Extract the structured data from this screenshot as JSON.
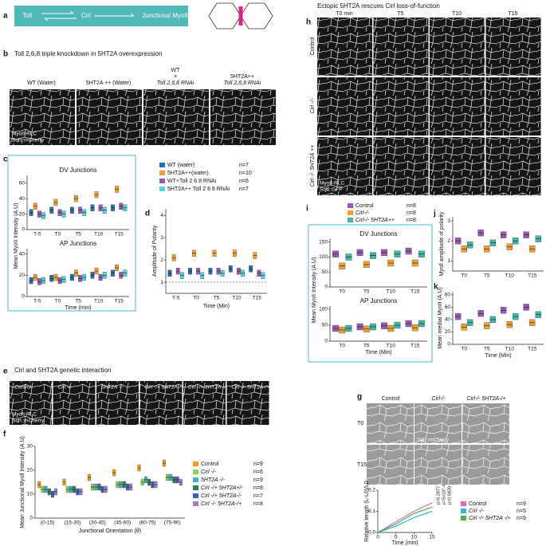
{
  "panel_a": {
    "letter": "a",
    "nodes": [
      "Toll",
      "Cirl",
      "Junctional MyoII"
    ]
  },
  "panel_b": {
    "letter": "b",
    "title": "Toll 2,6,8 triple knockdown in 5HT2A overexpression",
    "columns": [
      [
        "WT (Water)"
      ],
      [
        "5HT2A ++  (Water)"
      ],
      [
        "WT",
        "+",
        "Toll 2,6,8 RNAi"
      ],
      [
        "5HT2A++",
        "Toll 2,6,8 RNAi"
      ]
    ],
    "image_label": [
      "MyoII-RLC",
      "Sqh::mCherry"
    ]
  },
  "panel_c": {
    "letter": "c",
    "ylabel": "Mean MyoII Intensity (A.U)"
  },
  "panel_d": {
    "letter": "d"
  },
  "panel_e": {
    "letter": "e",
    "title": "Cirl and 5HT2A genetic interaction",
    "columns": [
      "Control",
      "Cirl -/-",
      "5HT2A -/-",
      "Cirl -/+ 5HT2A-/+",
      "Cirl -/+ 5HT2A -/-",
      "Cirl -/- 5HT2A-/+"
    ],
    "image_label": [
      "MyoII-RLC",
      "Sqh::mCherry"
    ]
  },
  "panel_f": {
    "letter": "f"
  },
  "panel_g": {
    "letter": "g",
    "columns": [
      "Control",
      "Cirl-/-",
      "Cirl-/- 5HT2A-/+"
    ],
    "rows": [
      "T0",
      "T15"
    ],
    "image_label": "Sqh::mCherry"
  },
  "panel_h": {
    "letter": "h",
    "title": "Ectopic 5HT2A  rescues Cirl loss-of-function",
    "columns": [
      "T0 min",
      "T5",
      "T10",
      "T15"
    ],
    "rows": [
      "Control",
      "Cirl -/-",
      "Cirl -/- 5HT2A ++"
    ],
    "image_label": [
      "MyoII-RLC",
      "Sqh::GFP"
    ]
  },
  "panel_i": {
    "letter": "i",
    "ylabel": "Mean MyoII Intensity (A.U)"
  },
  "panel_j": {
    "letter": "j"
  },
  "panel_k": {
    "letter": "k"
  },
  "chart_data": [
    {
      "type": "box",
      "title": "DV Junctions",
      "categories": [
        "T-5",
        "T0",
        "T5",
        "T10",
        "T15"
      ],
      "series": [
        {
          "color": "#2b6cb0",
          "values": [
            22,
            25,
            25,
            28,
            28
          ]
        },
        {
          "color": "#f0a030",
          "values": [
            30,
            35,
            40,
            45,
            52
          ]
        },
        {
          "color": "#9b59b6",
          "values": [
            20,
            22,
            25,
            28,
            30
          ]
        },
        {
          "color": "#4fd6d6",
          "values": [
            18,
            20,
            22,
            25,
            28
          ]
        }
      ],
      "ylim": [
        0,
        70
      ],
      "yticks": [
        0,
        20,
        40,
        60
      ]
    },
    {
      "type": "box",
      "title": "AP Junctions",
      "xlabel": "Time (min)",
      "categories": [
        "T-5",
        "T0",
        "T5",
        "T10",
        "T15"
      ],
      "series": [
        {
          "color": "#2b6cb0",
          "values": [
            15,
            17,
            18,
            20,
            22
          ]
        },
        {
          "color": "#f0a030",
          "values": [
            18,
            18,
            22,
            24,
            27
          ]
        },
        {
          "color": "#9b59b6",
          "values": [
            14,
            15,
            17,
            18,
            20
          ]
        },
        {
          "color": "#4fd6d6",
          "values": [
            15,
            16,
            18,
            20,
            22
          ]
        }
      ],
      "ylim": [
        0,
        45
      ],
      "yticks": [
        0,
        20,
        40
      ]
    },
    {
      "type": "box",
      "xlabel": "Time (Min)",
      "ylabel": "Amplitude of Polarity",
      "categories": [
        "T-5",
        "T0",
        "T5",
        "T10",
        "T15"
      ],
      "series": [
        {
          "name": "WT (water)",
          "n": "n=7",
          "color": "#2b6cb0",
          "values": [
            1.4,
            1.5,
            1.5,
            1.6,
            1.6
          ]
        },
        {
          "name": "5HT2A++(water)",
          "n": "n=10",
          "color": "#f0a030",
          "values": [
            2.1,
            2.3,
            2.3,
            2.3,
            2.2
          ]
        },
        {
          "name": "WT+Toll 2 6 8 RNAi",
          "n": "n=6",
          "color": "#9b59b6",
          "values": [
            1.5,
            1.5,
            1.5,
            1.5,
            1.4
          ]
        },
        {
          "name": "5HT2A++ Toll 2 6 8 RNAi",
          "n": "n=7",
          "color": "#4fd6d6",
          "values": [
            1.3,
            1.3,
            1.4,
            1.4,
            1.3
          ]
        }
      ],
      "ylim": [
        0.5,
        4.3
      ],
      "yticks": [
        1,
        2,
        3,
        4
      ],
      "reference_line": 1
    },
    {
      "type": "box",
      "xlabel": "Junctional Orientation (θ)",
      "ylabel": "Mean Junctional Myoll Intensity (A.U)",
      "categories": [
        "(0-15)",
        "(15-30)",
        "(30-45)",
        "(45-60)",
        "(60-75)",
        "(75-90)"
      ],
      "series": [
        {
          "name": "Control",
          "n": "n=9",
          "color": "#f39c12",
          "values": [
            14,
            15,
            17,
            19,
            21,
            23
          ]
        },
        {
          "name": "Cirl -/-",
          "n": "n=6",
          "color": "#8fcf5a",
          "values": [
            12,
            12,
            13,
            14,
            15,
            17
          ]
        },
        {
          "name": "5HT2A -/-",
          "n": "n=9",
          "color": "#3bb3c3",
          "values": [
            12,
            12,
            13,
            14,
            16,
            17
          ]
        },
        {
          "name": "Cirl -/+ 5HT2A+/-",
          "n": "n=8",
          "color": "#2e7d5b",
          "values": [
            11,
            12,
            13,
            14,
            15,
            16
          ]
        },
        {
          "name": "Cirl -/+ 5HT2A-/-",
          "n": "n=7",
          "color": "#3a5fbf",
          "values": [
            10,
            11,
            12,
            13,
            14,
            16
          ]
        },
        {
          "name": "Cirl -/- 5HT2A-/+",
          "n": "n=8",
          "color": "#9b7fc9",
          "values": [
            11,
            11,
            12,
            13,
            14,
            15
          ]
        }
      ],
      "ylim": [
        0,
        30
      ],
      "yticks": [
        0,
        10,
        20,
        30
      ]
    },
    {
      "type": "box",
      "title": "DV Junctions",
      "categories": [
        "T0",
        "T5",
        "T10",
        "T15"
      ],
      "series": [
        {
          "name": "Control",
          "n": "n=8",
          "color": "#9b59b6",
          "values": [
            110,
            115,
            115,
            120
          ]
        },
        {
          "name": "Cirl-/-",
          "n": "n=8",
          "color": "#f0a030",
          "values": [
            70,
            75,
            80,
            80
          ]
        },
        {
          "name": "Cirl-/- 5HT2A++",
          "n": "n=8",
          "color": "#3fb8a8",
          "values": [
            100,
            105,
            110,
            110
          ]
        }
      ],
      "ylim": [
        0,
        160
      ],
      "yticks": [
        0,
        50,
        100,
        150
      ]
    },
    {
      "type": "box",
      "title": "AP Junctions",
      "xlabel": "Time (Min)",
      "categories": [
        "T0",
        "T5",
        "T10",
        "T15"
      ],
      "series": [
        {
          "color": "#9b59b6",
          "values": [
            40,
            45,
            48,
            55
          ]
        },
        {
          "color": "#f0a030",
          "values": [
            35,
            38,
            40,
            42
          ]
        },
        {
          "color": "#3fb8a8",
          "values": [
            40,
            45,
            50,
            55
          ]
        }
      ],
      "ylim": [
        0,
        110
      ],
      "yticks": [
        0,
        50,
        100
      ]
    },
    {
      "type": "box",
      "ylabel": "Myoll amplitude of polarity",
      "categories": [
        "T0",
        "T5",
        "T10",
        "T15"
      ],
      "series": [
        {
          "color": "#9b59b6",
          "values": [
            2.0,
            2.4,
            2.3,
            2.3
          ]
        },
        {
          "color": "#f0a030",
          "values": [
            1.6,
            1.6,
            1.7,
            1.6
          ]
        },
        {
          "color": "#3fb8a8",
          "values": [
            1.8,
            1.9,
            2.0,
            2.1
          ]
        }
      ],
      "ylim": [
        0.5,
        3.2
      ],
      "yticks": [
        1,
        2,
        3
      ]
    },
    {
      "type": "box",
      "xlabel": "Time (Min)",
      "ylabel": "Mean medial MyoII (A.U)",
      "categories": [
        "T0",
        "T5",
        "T10",
        "T15"
      ],
      "series": [
        {
          "color": "#9b59b6",
          "values": [
            45,
            50,
            55,
            60
          ]
        },
        {
          "color": "#f0a030",
          "values": [
            28,
            30,
            32,
            35
          ]
        },
        {
          "color": "#3fb8a8",
          "values": [
            35,
            40,
            45,
            48
          ]
        }
      ],
      "ylim": [
        0,
        85
      ],
      "yticks": [
        0,
        20,
        40,
        60,
        80
      ]
    },
    {
      "type": "line",
      "xlabel": "Time (min)",
      "ylabel": "Relative length (L-L0)/L0",
      "x": [
        0,
        5,
        10,
        15
      ],
      "series": [
        {
          "name": "Control",
          "n": "n=9",
          "color": "#d46fb0",
          "values": [
            0,
            0.05,
            0.1,
            0.14
          ]
        },
        {
          "name": "Cirl -/-",
          "n": "n=5",
          "color": "#2fb8d8",
          "values": [
            0,
            0.03,
            0.07,
            0.1
          ]
        },
        {
          "name": "Cirl -/- 5HT2A -/+",
          "n": "n=9",
          "color": "#4caf50",
          "values": [
            0,
            0.04,
            0.09,
            0.12
          ]
        }
      ],
      "xlim": [
        0,
        15
      ],
      "xticks": [
        0,
        5,
        10,
        15
      ],
      "ylim": [
        0,
        0.2
      ],
      "yticks": [
        {
          "value": 0,
          "label": "0.0"
        },
        0.1,
        0.2
      ],
      "annotations": [
        "p=0.2877",
        "p=5x10^-4",
        "p=0.0420"
      ]
    }
  ]
}
